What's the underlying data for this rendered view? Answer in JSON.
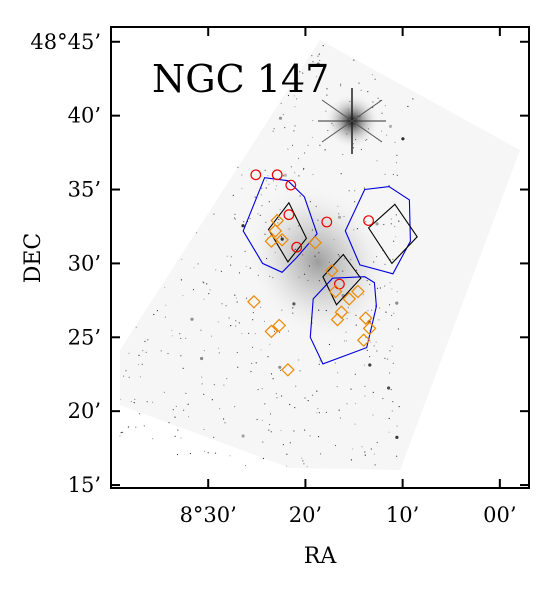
{
  "chart_data": {
    "type": "scatter",
    "title": "NGC 147",
    "xlabel": "RA",
    "ylabel": "DEC",
    "x_unit": "arcmin of RA (relative to 8°00')",
    "y_unit": "arcmin of DEC (relative to 48°00')",
    "xlim": [
      40,
      -3
    ],
    "ylim": [
      14.8,
      46
    ],
    "x_ticks": [
      {
        "value": 30,
        "label": "8°30’"
      },
      {
        "value": 20,
        "label": "20’"
      },
      {
        "value": 10,
        "label": "10’"
      },
      {
        "value": 0,
        "label": "00’"
      }
    ],
    "y_ticks": [
      {
        "value": 45,
        "label": "48°45’"
      },
      {
        "value": 40,
        "label": "40’"
      },
      {
        "value": 35,
        "label": "35’"
      },
      {
        "value": 30,
        "label": "30’"
      },
      {
        "value": 25,
        "label": "25’"
      },
      {
        "value": 20,
        "label": "20’"
      },
      {
        "value": 15,
        "label": "15’"
      }
    ],
    "grid": false,
    "background": "greyscale survey image of the field with a bright star at top-right",
    "colors": {
      "blue": "#0000dd",
      "black": "#000000",
      "red": "#ee0000",
      "orange": "#ee8800"
    },
    "series": [
      {
        "marker": "circle",
        "color": "#ee0000",
        "points": [
          {
            "x": 25.1,
            "y": 36.0
          },
          {
            "x": 22.9,
            "y": 36.0
          },
          {
            "x": 21.5,
            "y": 35.3
          },
          {
            "x": 21.7,
            "y": 33.3
          },
          {
            "x": 20.9,
            "y": 31.1
          },
          {
            "x": 17.8,
            "y": 32.8
          },
          {
            "x": 13.5,
            "y": 32.9
          },
          {
            "x": 16.5,
            "y": 28.6
          }
        ]
      },
      {
        "marker": "diamond",
        "color": "#ee8800",
        "points": [
          {
            "x": 22.9,
            "y": 32.9
          },
          {
            "x": 23.1,
            "y": 32.2
          },
          {
            "x": 23.5,
            "y": 31.5
          },
          {
            "x": 22.4,
            "y": 31.6
          },
          {
            "x": 19.0,
            "y": 31.4
          },
          {
            "x": 17.3,
            "y": 29.5
          },
          {
            "x": 25.3,
            "y": 27.4
          },
          {
            "x": 16.9,
            "y": 28.1
          },
          {
            "x": 15.5,
            "y": 27.6
          },
          {
            "x": 14.6,
            "y": 28.1
          },
          {
            "x": 16.3,
            "y": 26.7
          },
          {
            "x": 16.7,
            "y": 26.2
          },
          {
            "x": 13.8,
            "y": 26.3
          },
          {
            "x": 13.4,
            "y": 25.6
          },
          {
            "x": 14.0,
            "y": 24.8
          },
          {
            "x": 22.7,
            "y": 25.8
          },
          {
            "x": 23.5,
            "y": 25.4
          },
          {
            "x": 21.8,
            "y": 22.8
          }
        ]
      }
    ],
    "footprints": [
      {
        "color": "#0000dd",
        "points": [
          [
            26.4,
            32.2
          ],
          [
            24.2,
            35.8
          ],
          [
            21.8,
            35.6
          ],
          [
            20.1,
            34.5
          ],
          [
            18.8,
            32.0
          ],
          [
            20.9,
            30.4
          ],
          [
            22.4,
            29.4
          ],
          [
            24.4,
            30.0
          ]
        ]
      },
      {
        "color": "#0000dd",
        "points": [
          [
            15.9,
            32.2
          ],
          [
            13.9,
            35.0
          ],
          [
            11.4,
            35.2
          ],
          [
            9.3,
            34.3
          ],
          [
            9.2,
            31.5
          ],
          [
            11.0,
            29.3
          ],
          [
            14.4,
            29.9
          ]
        ]
      },
      {
        "color": "#0000dd",
        "points": [
          [
            19.2,
            27.6
          ],
          [
            17.2,
            29.0
          ],
          [
            13.9,
            29.1
          ],
          [
            12.9,
            28.7
          ],
          [
            12.7,
            27.1
          ],
          [
            13.7,
            24.3
          ],
          [
            18.2,
            23.2
          ],
          [
            19.5,
            25.0
          ]
        ]
      },
      {
        "color": "#000000",
        "points": [
          [
            23.8,
            32.3
          ],
          [
            21.7,
            34.1
          ],
          [
            19.9,
            31.7
          ],
          [
            21.8,
            30.1
          ]
        ]
      },
      {
        "color": "#000000",
        "points": [
          [
            13.5,
            32.4
          ],
          [
            10.8,
            34.0
          ],
          [
            8.5,
            31.8
          ],
          [
            11.1,
            30.0
          ]
        ]
      },
      {
        "color": "#000000",
        "points": [
          [
            18.2,
            29.1
          ],
          [
            16.1,
            30.6
          ],
          [
            14.3,
            29.0
          ],
          [
            16.8,
            27.2
          ]
        ]
      }
    ]
  }
}
